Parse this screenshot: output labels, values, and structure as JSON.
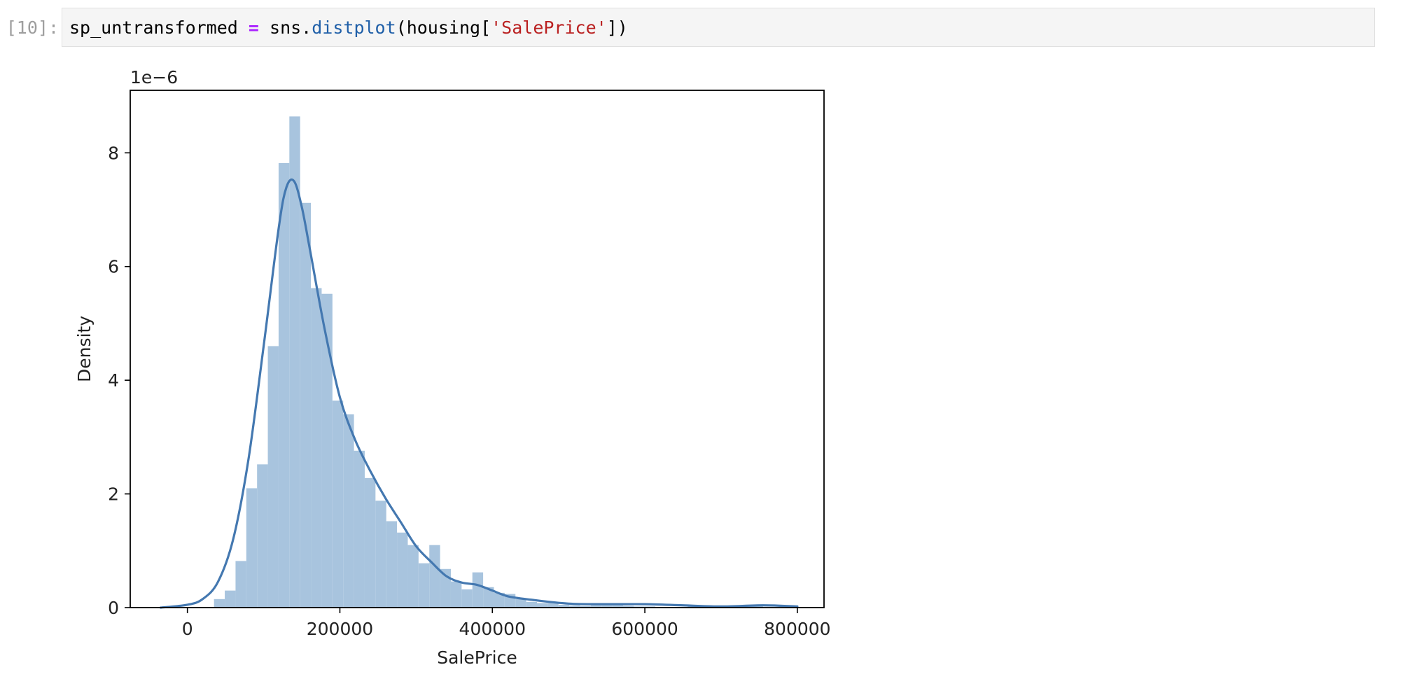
{
  "cell": {
    "prompt": "[10]:",
    "code": {
      "var": "sp_untransformed",
      "op": "=",
      "module": "sns",
      "dot": ".",
      "func": "distplot",
      "open": "(housing[",
      "arg": "'SalePrice'",
      "close": "])"
    }
  },
  "chart_data": {
    "type": "bar",
    "title": "",
    "xlabel": "SalePrice",
    "ylabel": "Density",
    "y_offset_label": "1e−6",
    "xlim": [
      -75000,
      835000
    ],
    "ylim": [
      0,
      9.1
    ],
    "x_ticks": [
      0,
      200000,
      400000,
      600000,
      800000
    ],
    "x_tick_labels": [
      "0",
      "200000",
      "400000",
      "600000",
      "800000"
    ],
    "y_ticks": [
      0,
      2,
      4,
      6,
      8
    ],
    "y_tick_labels": [
      "0",
      "2",
      "4",
      "6",
      "8"
    ],
    "grid": false,
    "colors": {
      "hist": "#a8c4de",
      "kde": "#4478b0",
      "axes": "#000000"
    },
    "hist": {
      "bin_start": 34900,
      "bin_width": 14120,
      "values": [
        0.15,
        0.3,
        0.82,
        2.1,
        2.52,
        4.6,
        7.82,
        8.64,
        7.12,
        5.62,
        5.52,
        3.64,
        3.4,
        2.76,
        2.28,
        1.88,
        1.52,
        1.32,
        1.1,
        0.78,
        1.1,
        0.68,
        0.46,
        0.32,
        0.62,
        0.36,
        0.26,
        0.24,
        0.15,
        0.1,
        0.08,
        0.08,
        0.05,
        0.04,
        0.03,
        0.04,
        0.04,
        0.04,
        0.03,
        0.02,
        0.02,
        0.01,
        0.01,
        0.01,
        0.02,
        0.02,
        0.02,
        0.02,
        0.02,
        0.02,
        0.02
      ]
    },
    "kde": {
      "x": [
        -35000,
        0,
        20000,
        40000,
        60000,
        80000,
        100000,
        120000,
        130000,
        140000,
        150000,
        160000,
        180000,
        200000,
        220000,
        240000,
        260000,
        280000,
        300000,
        320000,
        340000,
        360000,
        380000,
        400000,
        420000,
        450000,
        500000,
        550000,
        600000,
        650000,
        700000,
        755000,
        800000
      ],
      "y": [
        0.0,
        0.05,
        0.15,
        0.45,
        1.2,
        2.6,
        4.6,
        6.7,
        7.4,
        7.5,
        7.05,
        6.35,
        4.9,
        3.7,
        2.95,
        2.4,
        1.92,
        1.5,
        1.08,
        0.8,
        0.55,
        0.44,
        0.4,
        0.3,
        0.2,
        0.14,
        0.07,
        0.06,
        0.06,
        0.04,
        0.02,
        0.04,
        0.02
      ]
    }
  }
}
